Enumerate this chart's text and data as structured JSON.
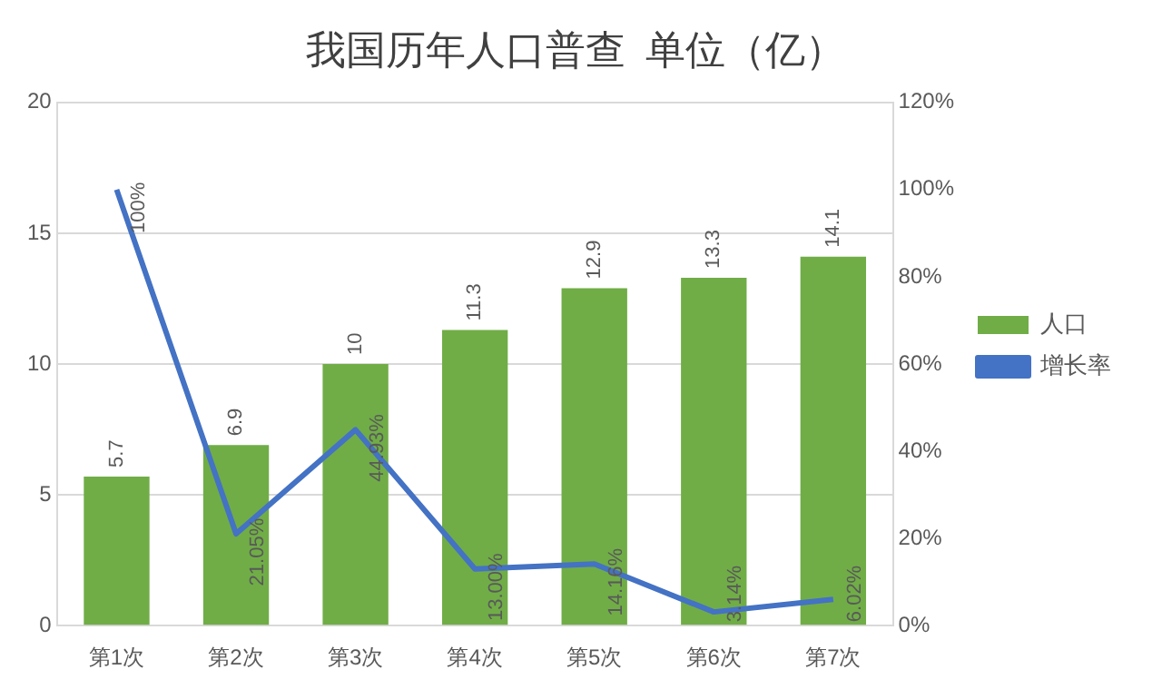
{
  "chart_data": {
    "type": "bar",
    "title": "我国历年人口普查  单位（亿）",
    "categories": [
      "第1次",
      "第2次",
      "第3次",
      "第4次",
      "第5次",
      "第6次",
      "第7次"
    ],
    "series": [
      {
        "name": "人口",
        "color": "#70ad47",
        "values": [
          5.7,
          6.9,
          10,
          11.3,
          12.9,
          13.3,
          14.1
        ],
        "value_labels": [
          "5.7",
          "6.9",
          "10",
          "11.3",
          "12.9",
          "13.3",
          "14.1"
        ]
      },
      {
        "name": "增长率",
        "type": "line",
        "axis": "y2",
        "color": "#4472c4",
        "values": [
          100,
          21.05,
          44.93,
          13.0,
          14.16,
          3.14,
          6.02
        ],
        "value_labels": [
          "100%",
          "21.05%",
          "44.93%",
          "13.00%",
          "14.16%",
          "3.14%",
          "6.02%"
        ]
      }
    ],
    "ylim": [
      0,
      20
    ],
    "yticks": [
      0,
      5,
      10,
      15,
      20
    ],
    "y2lim": [
      0,
      120
    ],
    "y2ticks": [
      {
        "value": 0,
        "label": "0%"
      },
      {
        "value": 20,
        "label": "20%"
      },
      {
        "value": 40,
        "label": "40%"
      },
      {
        "value": 60,
        "label": "60%"
      },
      {
        "value": 80,
        "label": "80%"
      },
      {
        "value": 100,
        "label": "100%"
      },
      {
        "value": 120,
        "label": "120%"
      }
    ],
    "grid": "y",
    "legend": "right",
    "marker": "none"
  }
}
